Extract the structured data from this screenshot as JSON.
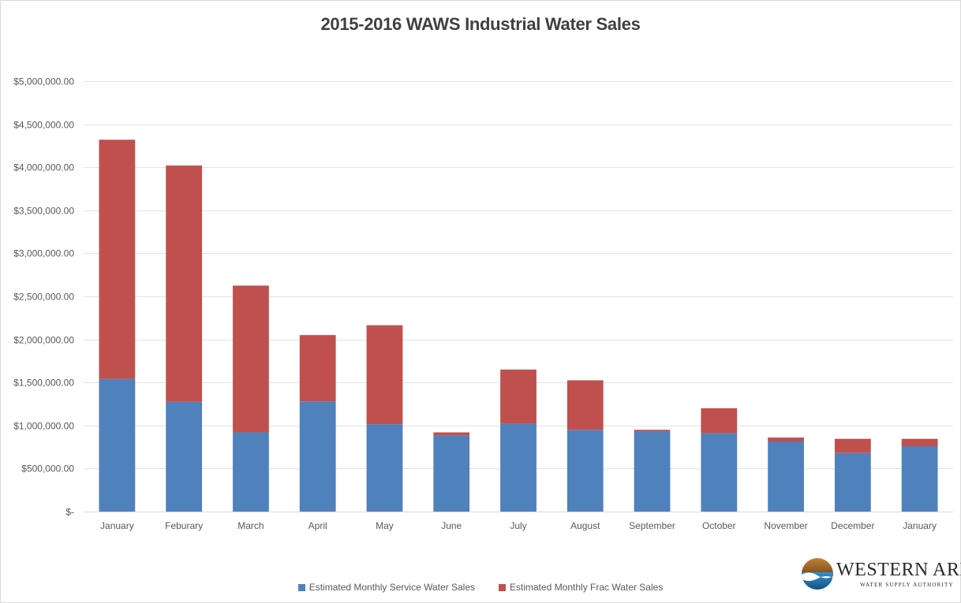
{
  "chart_data": {
    "type": "bar",
    "stacked": true,
    "title": "2015-2016 WAWS Industrial Water Sales",
    "xlabel": "",
    "ylabel": "",
    "categories": [
      "January",
      "Feburary",
      "March",
      "April",
      "May",
      "June",
      "July",
      "August",
      "September",
      "October",
      "November",
      "December",
      "January"
    ],
    "series": [
      {
        "name": "Estimated Monthly Service Water Sales",
        "color": "#4f81bd",
        "values": [
          1540000,
          1275000,
          920000,
          1280000,
          1015000,
          885000,
          1020000,
          950000,
          930000,
          910000,
          815000,
          680000,
          760000
        ]
      },
      {
        "name": "Estimated Monthly Frac Water Sales",
        "color": "#c0504d",
        "values": [
          2780000,
          2745000,
          1705000,
          770000,
          1150000,
          35000,
          630000,
          575000,
          20000,
          290000,
          45000,
          165000,
          85000
        ]
      }
    ],
    "ylim": [
      0,
      5000000
    ],
    "yticks": [
      "$-",
      "$500,000.00",
      "$1,000,000.00",
      "$1,500,000.00",
      "$2,000,000.00",
      "$2,500,000.00",
      "$3,000,000.00",
      "$3,500,000.00",
      "$4,000,000.00",
      "$4,500,000.00",
      "$5,000,000.00"
    ],
    "ytick_values": [
      0,
      500000,
      1000000,
      1500000,
      2000000,
      2500000,
      3000000,
      3500000,
      4000000,
      4500000,
      5000000
    ],
    "grid": true,
    "legend_position": "bottom"
  },
  "logo": {
    "main": "WESTERN AREA",
    "sub": "WATER SUPPLY AUTHORITY",
    "icon": "water-drop-landscape-icon"
  }
}
